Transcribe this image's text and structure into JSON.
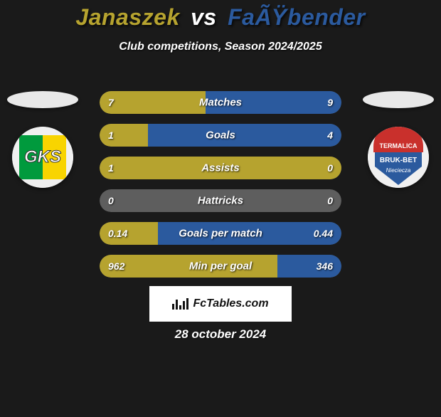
{
  "title": {
    "player1": "Janaszek",
    "vs": "vs",
    "player2": "FaÃŸbender",
    "player1_color": "#b6a32f",
    "player2_color": "#2b5a9e"
  },
  "subtitle": "Club competitions, Season 2024/2025",
  "colors": {
    "background": "#1a1a1a",
    "bar_bg": "#5e5e5e",
    "left_fill": "#b6a32f",
    "right_fill": "#2b5a9e",
    "text": "#ffffff"
  },
  "bars": [
    {
      "label": "Matches",
      "left": "7",
      "right": "9",
      "left_pct": 43.7,
      "right_pct": 56.3
    },
    {
      "label": "Goals",
      "left": "1",
      "right": "4",
      "left_pct": 20.0,
      "right_pct": 80.0
    },
    {
      "label": "Assists",
      "left": "1",
      "right": "0",
      "left_pct": 100.0,
      "right_pct": 0.0
    },
    {
      "label": "Hattricks",
      "left": "0",
      "right": "0",
      "left_pct": 0.0,
      "right_pct": 0.0
    },
    {
      "label": "Goals per match",
      "left": "0.14",
      "right": "0.44",
      "left_pct": 24.1,
      "right_pct": 75.9
    },
    {
      "label": "Min per goal",
      "left": "962",
      "right": "346",
      "left_pct": 73.6,
      "right_pct": 26.4
    }
  ],
  "branding": {
    "label": "FcTables.com"
  },
  "date": "28 october 2024",
  "badge_left": {
    "bg1": "#f8d400",
    "bg2": "#009a3d",
    "text": "GKS",
    "text_color": "#ffffff"
  },
  "badge_right": {
    "bg_top": "#c9302c",
    "bg_bottom": "#2b5a9e",
    "line1": "TERMALICA",
    "line2": "BRUK-BET",
    "small": "Nieciecza"
  }
}
